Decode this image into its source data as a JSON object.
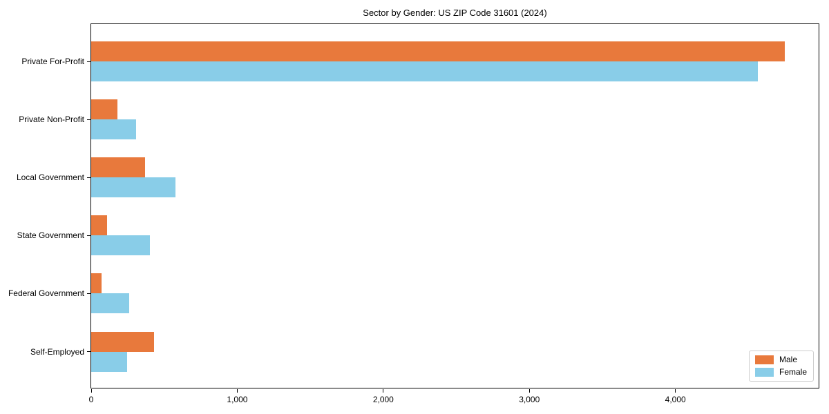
{
  "title": "Sector by Gender: US ZIP Code 31601 (2024)",
  "chart_data": {
    "type": "bar",
    "orientation": "horizontal",
    "title": "Sector by Gender: US ZIP Code 31601 (2024)",
    "categories": [
      "Private For-Profit",
      "Private Non-Profit",
      "Local Government",
      "State Government",
      "Federal Government",
      "Self-Employed"
    ],
    "series": [
      {
        "name": "Male",
        "color": "#E8793C",
        "values": [
          4750,
          180,
          370,
          110,
          70,
          430
        ]
      },
      {
        "name": "Female",
        "color": "#89CDE8",
        "values": [
          4565,
          305,
          575,
          400,
          260,
          245
        ]
      }
    ],
    "xlabel": "",
    "ylabel": "",
    "xlim": [
      0,
      4990
    ],
    "xticks": [
      0,
      1000,
      2000,
      3000,
      4000
    ],
    "xtick_labels": [
      "0",
      "1,000",
      "2,000",
      "3,000",
      "4,000"
    ],
    "grid": false,
    "legend_position": "lower right",
    "background_color": "#ffffff",
    "spine_color": "#000000"
  }
}
